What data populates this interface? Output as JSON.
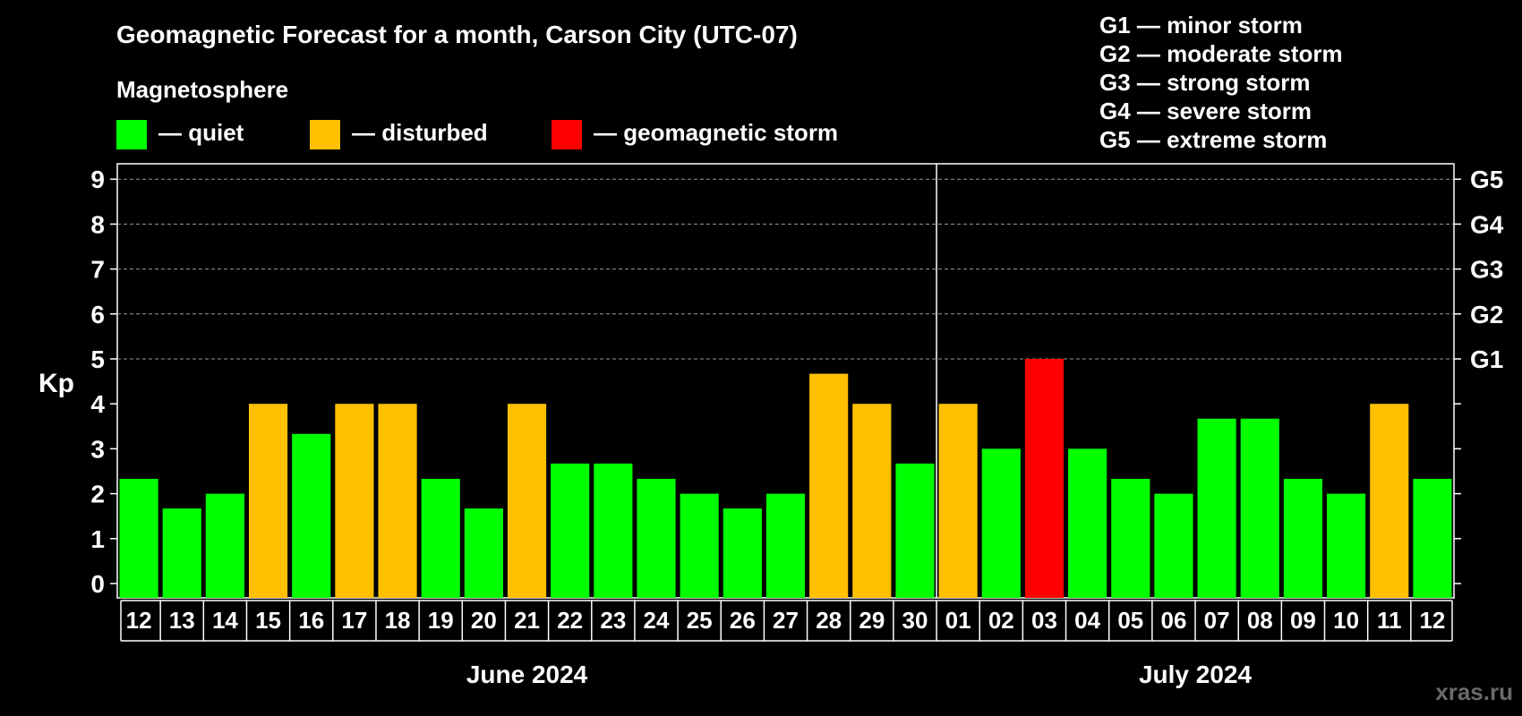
{
  "chart_data": {
    "type": "bar",
    "title": "Geomagnetic Forecast for a month, Carson City (UTC-07)",
    "legend_title": "Magnetosphere",
    "legend": [
      {
        "key": "quiet",
        "label": "— quiet",
        "color": "#00ff00"
      },
      {
        "key": "disturbed",
        "label": "— disturbed",
        "color": "#ffc000"
      },
      {
        "key": "storm",
        "label": "— geomagnetic storm",
        "color": "#ff0000"
      }
    ],
    "storm_scale": [
      {
        "code": "G1",
        "label": "G1 — minor storm"
      },
      {
        "code": "G2",
        "label": "G2 — moderate storm"
      },
      {
        "code": "G3",
        "label": "G3 — strong storm"
      },
      {
        "code": "G4",
        "label": "G4 — severe storm"
      },
      {
        "code": "G5",
        "label": "G5 — extreme storm"
      }
    ],
    "ylabel": "Kp",
    "ylim": [
      0,
      9
    ],
    "yticks": [
      "0",
      "1",
      "2",
      "3",
      "4",
      "5",
      "6",
      "7",
      "8",
      "9"
    ],
    "right_ticks": [
      {
        "kp": 5,
        "label": "G1"
      },
      {
        "kp": 6,
        "label": "G2"
      },
      {
        "kp": 7,
        "label": "G3"
      },
      {
        "kp": 8,
        "label": "G4"
      },
      {
        "kp": 9,
        "label": "G5"
      }
    ],
    "grid": "dashed horizontal at Kp 5 through 9",
    "categories": [
      "12",
      "13",
      "14",
      "15",
      "16",
      "17",
      "18",
      "19",
      "20",
      "21",
      "22",
      "23",
      "24",
      "25",
      "26",
      "27",
      "28",
      "29",
      "30",
      "01",
      "02",
      "03",
      "04",
      "05",
      "06",
      "07",
      "08",
      "09",
      "10",
      "11",
      "12"
    ],
    "values": [
      2.33,
      1.67,
      2,
      4,
      3.33,
      4,
      4,
      2.33,
      1.67,
      4,
      2.67,
      2.67,
      2.33,
      2,
      1.67,
      2,
      4.67,
      4,
      2.67,
      4,
      3,
      5,
      3,
      2.33,
      2,
      3.67,
      3.67,
      2.33,
      2,
      4,
      2.33
    ],
    "levels": [
      "quiet",
      "quiet",
      "quiet",
      "disturbed",
      "quiet",
      "disturbed",
      "disturbed",
      "quiet",
      "quiet",
      "disturbed",
      "quiet",
      "quiet",
      "quiet",
      "quiet",
      "quiet",
      "quiet",
      "disturbed",
      "disturbed",
      "quiet",
      "disturbed",
      "quiet",
      "storm",
      "quiet",
      "quiet",
      "quiet",
      "quiet",
      "quiet",
      "quiet",
      "quiet",
      "disturbed",
      "quiet"
    ],
    "months": [
      {
        "label": "June 2024",
        "first": 0,
        "last": 18
      },
      {
        "label": "July 2024",
        "first": 19,
        "last": 30
      }
    ]
  },
  "watermark": "xras.ru"
}
